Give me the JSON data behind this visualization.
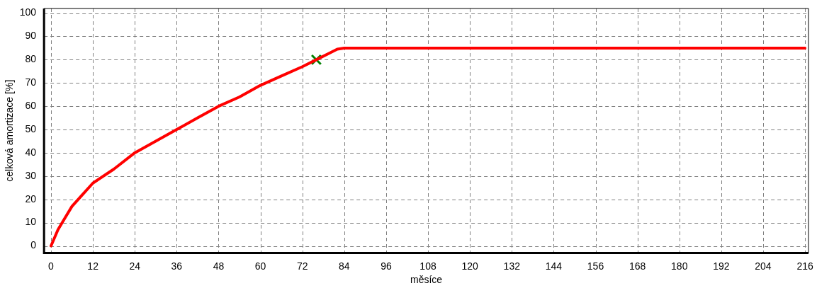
{
  "chart_data": {
    "type": "line",
    "xlabel": "měsíce",
    "ylabel": "celková amortizace [%]",
    "xlim": [
      -2,
      217
    ],
    "xticks": [
      0,
      12,
      24,
      36,
      48,
      60,
      72,
      84,
      96,
      108,
      120,
      132,
      144,
      156,
      168,
      180,
      192,
      204,
      216
    ],
    "ylim": [
      -3,
      102
    ],
    "yticks": [
      0,
      10,
      20,
      30,
      40,
      50,
      60,
      70,
      80,
      90,
      100
    ],
    "grid": true,
    "legend": false,
    "marker": "none",
    "line_style": "solid",
    "series": [
      {
        "color": "#ff0000",
        "x": [
          0,
          2,
          4,
          6,
          9,
          12,
          18,
          24,
          30,
          36,
          42,
          48,
          54,
          60,
          66,
          72,
          76,
          80,
          82,
          84,
          216
        ],
        "values": [
          0,
          7,
          12,
          17,
          22,
          27,
          33,
          40,
          45,
          50,
          55,
          60,
          64,
          69,
          73,
          77,
          80,
          83,
          84.5,
          85,
          85
        ]
      },
      {
        "type": "scatter",
        "color": "#008000",
        "marker": "cross",
        "x": [
          76
        ],
        "values": [
          80
        ]
      }
    ]
  }
}
